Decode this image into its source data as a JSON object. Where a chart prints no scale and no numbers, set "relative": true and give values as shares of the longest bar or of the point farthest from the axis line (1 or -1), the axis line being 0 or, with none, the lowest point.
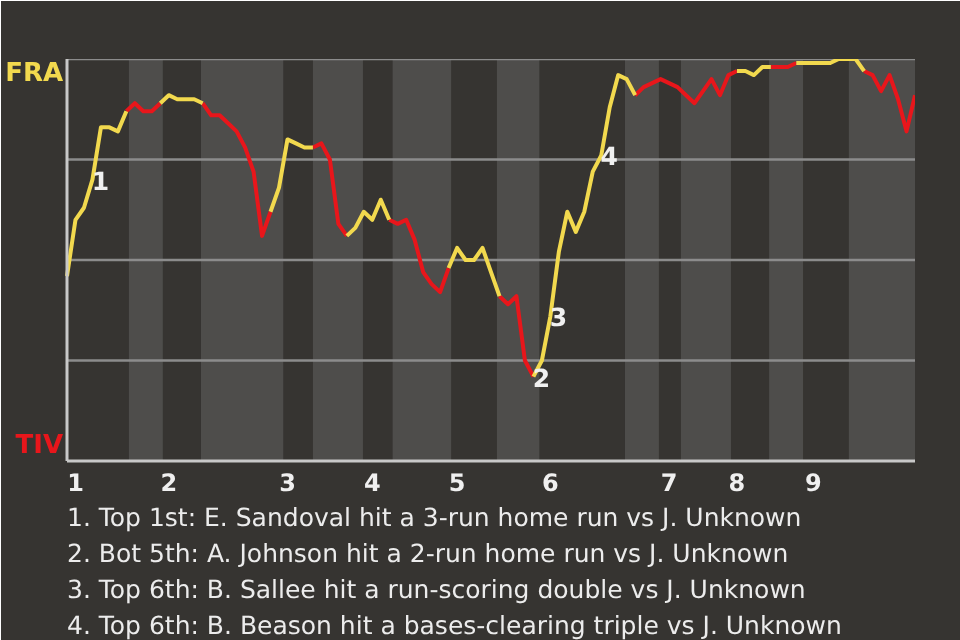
{
  "chart_data": {
    "type": "line",
    "line_style": "solid",
    "relative": true,
    "ref_lines": [
      {
        "axis": "y",
        "value": 0.25,
        "color": "#8c8c8c"
      },
      {
        "axis": "y",
        "value": 0.5,
        "color": "#8c8c8c"
      },
      {
        "axis": "y",
        "value": 0.75,
        "color": "#8c8c8c"
      },
      {
        "axis": "y",
        "value": 1,
        "color": "#8c8c8c"
      }
    ],
    "categories": [
      null,
      "1",
      null,
      null,
      null,
      null,
      null,
      null,
      null,
      null,
      null,
      null,
      "2",
      null,
      null,
      null,
      null,
      null,
      null,
      null,
      null,
      null,
      null,
      null,
      null,
      null,
      "3",
      null,
      null,
      null,
      null,
      null,
      null,
      null,
      null,
      null,
      "4",
      null,
      null,
      null,
      null,
      null,
      null,
      null,
      null,
      null,
      "5",
      null,
      null,
      null,
      null,
      null,
      null,
      null,
      null,
      null,
      null,
      "6",
      null,
      null,
      null,
      null,
      null,
      null,
      null,
      null,
      null,
      null,
      null,
      null,
      null,
      "7",
      null,
      null,
      null,
      null,
      null,
      null,
      null,
      "8",
      null,
      null,
      null,
      null,
      null,
      null,
      null,
      null,
      "9",
      null,
      null,
      null,
      null,
      null,
      null,
      null,
      null,
      null,
      null,
      null,
      null
    ],
    "series": [
      {
        "color": "#f2d94e",
        "values": [
          0.46,
          0.6,
          0.63,
          0.7,
          0.83,
          0.83,
          0.82,
          0.87,
          null,
          null,
          null,
          0.89,
          0.91,
          0.9,
          0.9,
          0.9,
          0.89,
          null,
          null,
          null,
          null,
          null,
          null,
          null,
          0.62,
          0.68,
          0.8,
          0.79,
          0.78,
          0.78,
          null,
          null,
          null,
          0.56,
          0.58,
          0.62,
          0.6,
          0.65,
          0.6,
          null,
          null,
          null,
          null,
          null,
          null,
          0.48,
          0.53,
          0.5,
          0.5,
          0.53,
          0.47,
          0.41,
          null,
          null,
          null,
          0.21,
          0.25,
          0.36,
          0.52,
          0.62,
          0.57,
          0.62,
          0.72,
          0.76,
          0.88,
          0.96,
          0.95,
          0.91,
          null,
          null,
          null,
          null,
          null,
          null,
          null,
          null,
          null,
          null,
          null,
          0.97,
          0.97,
          0.96,
          0.98,
          0.98,
          null,
          null,
          0.99,
          0.99,
          0.99,
          0.99,
          0.99,
          1,
          1,
          1,
          0.97,
          null,
          null,
          null,
          null,
          null,
          null
        ]
      },
      {
        "color": "#e8161b",
        "values": [
          null,
          null,
          null,
          null,
          null,
          null,
          null,
          0.87,
          0.89,
          0.87,
          0.87,
          0.89,
          null,
          null,
          null,
          null,
          0.89,
          0.86,
          0.86,
          0.84,
          0.82,
          0.78,
          0.72,
          0.56,
          0.62,
          null,
          null,
          null,
          null,
          0.78,
          0.79,
          0.75,
          0.59,
          0.56,
          null,
          null,
          null,
          null,
          0.6,
          0.59,
          0.6,
          0.55,
          0.47,
          0.44,
          0.42,
          0.48,
          null,
          null,
          null,
          null,
          null,
          0.41,
          0.39,
          0.41,
          0.25,
          0.21,
          null,
          null,
          null,
          null,
          null,
          null,
          null,
          null,
          null,
          null,
          null,
          0.91,
          0.93,
          0.94,
          0.95,
          0.94,
          0.93,
          0.91,
          0.89,
          0.92,
          0.95,
          0.91,
          0.96,
          0.97,
          null,
          null,
          null,
          0.98,
          0.98,
          0.98,
          0.99,
          null,
          null,
          null,
          null,
          null,
          null,
          null,
          0.97,
          0.96,
          0.92,
          0.96,
          0.9,
          0.82,
          0.91
        ]
      }
    ],
    "annotations": [
      {
        "text": "1",
        "y": 0.7
      },
      {
        "text": "2",
        "y": 0.21
      },
      {
        "text": "3",
        "y": 0.36
      },
      {
        "text": "4",
        "y": 0.76
      },
      "FRA",
      "TIV",
      "1. Top 1st: E. Sandoval hit a 3-run home run vs J. Unknown",
      "2. Bot 5th: A. Johnson hit a 2-run home run vs J. Unknown",
      "3. Top 6th: B. Sallee hit a run-scoring double vs J. Unknown",
      "4. Top 6th: B. Beason hit a bases-clearing triple vs J. Unknown"
    ]
  }
}
